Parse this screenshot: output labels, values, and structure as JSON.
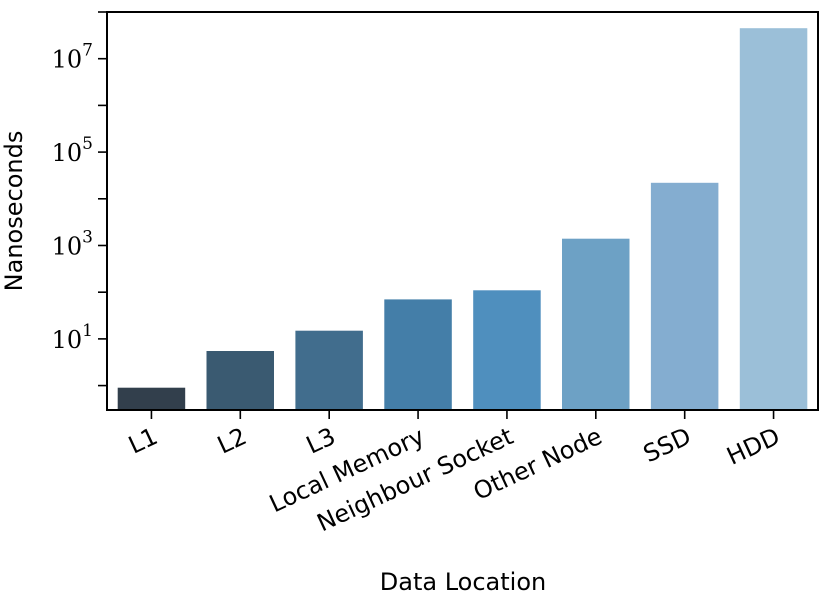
{
  "chart_data": {
    "type": "bar",
    "categories": [
      "L1",
      "L2",
      "L3",
      "Local Memory",
      "Neighbour Socket",
      "Other Node",
      "SSD",
      "HDD"
    ],
    "values": [
      0.9,
      5.5,
      15,
      70,
      110,
      1400,
      22000,
      45000000
    ],
    "colors": [
      "#323f4c",
      "#3a5a71",
      "#416d8d",
      "#447ea8",
      "#4f8fbe",
      "#6da1c5",
      "#84add0",
      "#9bbfd8"
    ],
    "xlabel": "Data Location",
    "ylabel": "Nanoseconds",
    "yscale": "log",
    "ylim": [
      0.3,
      100000000
    ],
    "yticks": [
      {
        "base": "10",
        "exp": "1",
        "value": 10
      },
      {
        "base": "10",
        "exp": "3",
        "value": 1000
      },
      {
        "base": "10",
        "exp": "5",
        "value": 100000
      },
      {
        "base": "10",
        "exp": "7",
        "value": 10000000
      }
    ],
    "grid": false,
    "legend": "none"
  }
}
